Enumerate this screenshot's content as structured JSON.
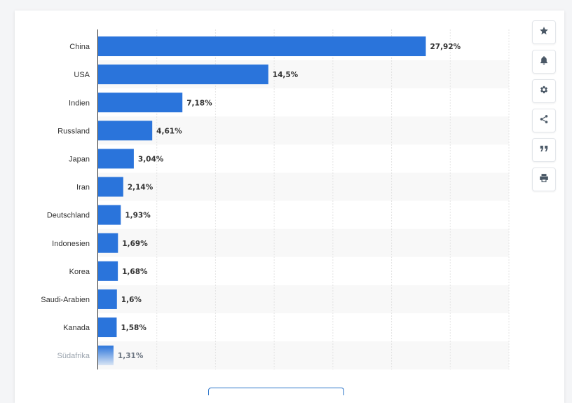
{
  "chart_data": {
    "type": "bar",
    "orientation": "horizontal",
    "categories": [
      "China",
      "USA",
      "Indien",
      "Russland",
      "Japan",
      "Iran",
      "Deutschland",
      "Indonesien",
      "Korea",
      "Saudi-Arabien",
      "Kanada",
      "Südafrika"
    ],
    "values": [
      27.92,
      14.5,
      7.18,
      4.61,
      3.04,
      2.14,
      1.93,
      1.69,
      1.68,
      1.6,
      1.58,
      1.31
    ],
    "value_labels": [
      "27,92%",
      "14,5%",
      "7,18%",
      "4,61%",
      "3,04%",
      "2,14%",
      "1,93%",
      "1,69%",
      "1,68%",
      "1,6%",
      "1,58%",
      "1,31%"
    ],
    "xlim": [
      0,
      35
    ],
    "grid": true,
    "bar_color": "#2a74db",
    "stripe_color": "#f8f8f8"
  },
  "toolbar": {
    "items": [
      {
        "icon": "star-icon"
      },
      {
        "icon": "bell-icon"
      },
      {
        "icon": "gear-icon"
      },
      {
        "icon": "share-icon"
      },
      {
        "icon": "quote-icon"
      },
      {
        "icon": "print-icon"
      }
    ]
  }
}
